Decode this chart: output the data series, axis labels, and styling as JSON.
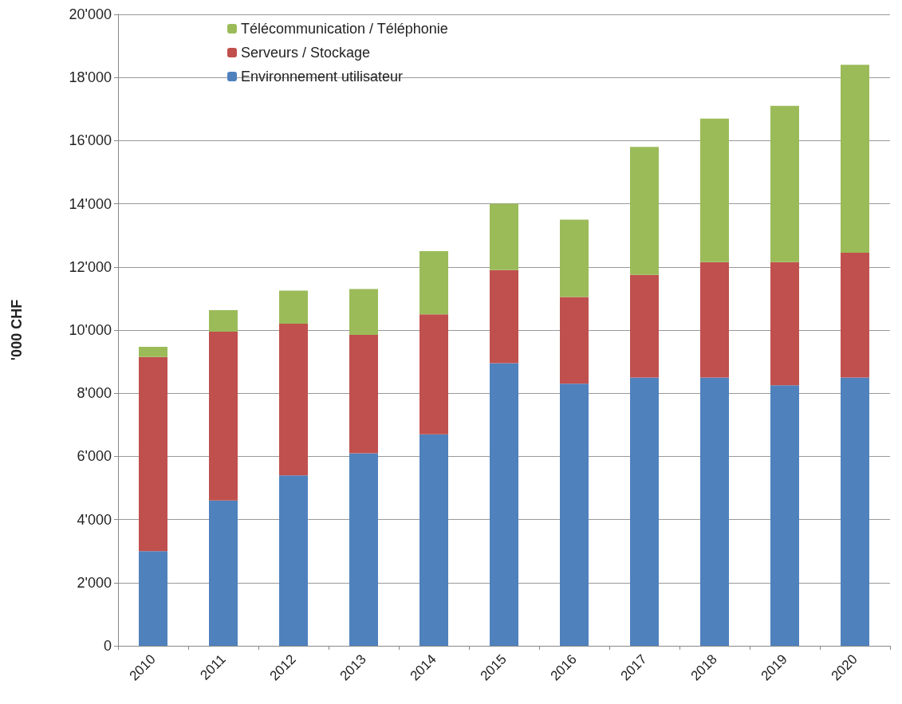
{
  "chart_data": {
    "type": "bar",
    "stacked": true,
    "ylabel": "'000 CHF",
    "categories": [
      "2010",
      "2011",
      "2012",
      "2013",
      "2014",
      "2015",
      "2016",
      "2017",
      "2018",
      "2019",
      "2020"
    ],
    "series": [
      {
        "name": "Environnement utilisateur",
        "color": "#4f81bd",
        "values": [
          3000,
          4600,
          5400,
          6100,
          6700,
          8950,
          8300,
          8500,
          8500,
          8250,
          8500
        ]
      },
      {
        "name": "Serveurs / Stockage",
        "color": "#c0504d",
        "values": [
          6150,
          5350,
          4800,
          3750,
          3800,
          2950,
          2750,
          3250,
          3650,
          3900,
          3950
        ]
      },
      {
        "name": "Télécommunication / Téléphonie",
        "color": "#9bbb59",
        "values": [
          320,
          680,
          1050,
          1450,
          2000,
          2100,
          2450,
          4050,
          4550,
          4950,
          5950
        ]
      }
    ],
    "ylim": [
      0,
      20000
    ],
    "yticks": [
      0,
      {
        "value": 2000,
        "label": "2'000"
      },
      {
        "value": 4000,
        "label": "4'000"
      },
      {
        "value": 6000,
        "label": "6'000"
      },
      {
        "value": 8000,
        "label": "8'000"
      },
      {
        "value": 10000,
        "label": "10'000"
      },
      {
        "value": 12000,
        "label": "12'000"
      },
      {
        "value": 14000,
        "label": "14'000"
      },
      {
        "value": 16000,
        "label": "16'000"
      },
      {
        "value": 18000,
        "label": "18'000"
      },
      {
        "value": 20000,
        "label": "20'000"
      }
    ],
    "grid": "y",
    "legend": "top"
  }
}
